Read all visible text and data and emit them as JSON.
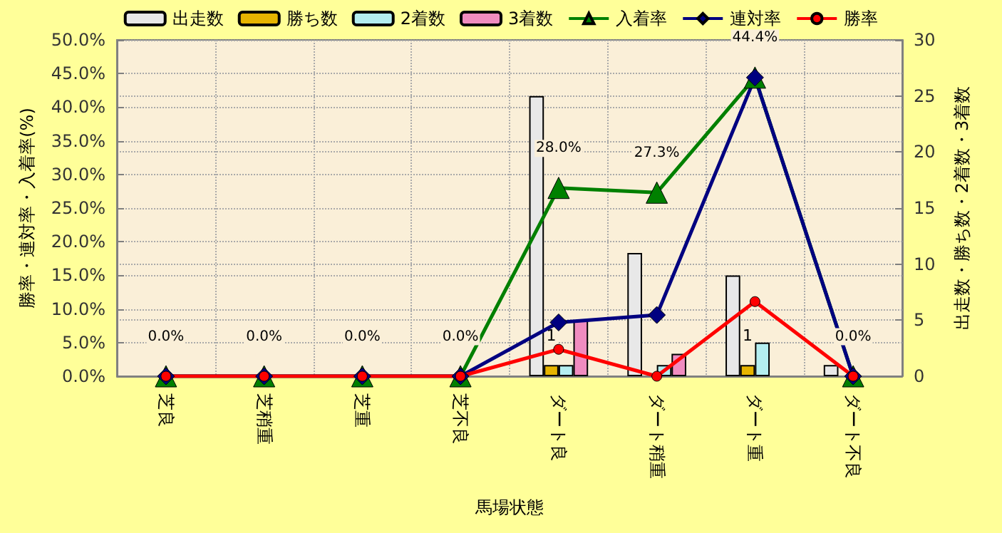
{
  "chart_data": {
    "type": "bar",
    "xlabel": "馬場状態",
    "ylabel": "勝率・連対率・入着率(%)",
    "y2label": "出走数・勝ち数・2着数・3着数",
    "categories": [
      "芝良",
      "芝稍重",
      "芝重",
      "芝不良",
      "ダート良",
      "ダート稍重",
      "ダート重",
      "ダート不良"
    ],
    "series": [
      {
        "name": "出走数",
        "axis": "y2",
        "color": "#e8e8e8",
        "values": [
          0,
          0,
          0,
          0,
          25,
          11,
          9,
          1
        ]
      },
      {
        "name": "勝ち数",
        "axis": "y2",
        "color": "#e6b400",
        "values": [
          0,
          0,
          0,
          0,
          1,
          0,
          1,
          0
        ],
        "value_labels": [
          null,
          null,
          null,
          null,
          "1",
          null,
          "1",
          null
        ]
      },
      {
        "name": "2着数",
        "axis": "y2",
        "color": "#b4eef0",
        "values": [
          0,
          0,
          0,
          0,
          1,
          1,
          3,
          0
        ]
      },
      {
        "name": "3着数",
        "axis": "y2",
        "color": "#f08cc0",
        "values": [
          0,
          0,
          0,
          0,
          5,
          2,
          0,
          0
        ]
      },
      {
        "name": "入着率",
        "type": "line",
        "marker": "triangle",
        "color": "#008000",
        "values": [
          0,
          0,
          0,
          0,
          28.0,
          27.3,
          44.4,
          0
        ],
        "value_labels": [
          "0.0%",
          "0.0%",
          "0.0%",
          "0.0%",
          "28.0%",
          "27.3%",
          "44.4%",
          "0.0%"
        ]
      },
      {
        "name": "連対率",
        "type": "line",
        "marker": "diamond",
        "color": "#000080",
        "values": [
          0,
          0,
          0,
          0,
          8.0,
          9.1,
          44.4,
          0
        ]
      },
      {
        "name": "勝率",
        "type": "line",
        "marker": "circle",
        "color": "#ff0000",
        "values": [
          0,
          0,
          0,
          0,
          4.0,
          0,
          11.1,
          0
        ]
      }
    ],
    "ylim": [
      0,
      50
    ],
    "yticks": [
      {
        "value": 0,
        "label": "0.0%"
      },
      {
        "value": 5,
        "label": "5.0%"
      },
      {
        "value": 10,
        "label": "10.0%"
      },
      {
        "value": 15,
        "label": "15.0%"
      },
      {
        "value": 20,
        "label": "20.0%"
      },
      {
        "value": 25,
        "label": "25.0%"
      },
      {
        "value": 30,
        "label": "30.0%"
      },
      {
        "value": 35,
        "label": "35.0%"
      },
      {
        "value": 40,
        "label": "40.0%"
      },
      {
        "value": 45,
        "label": "45.0%"
      },
      {
        "value": 50,
        "label": "50.0%"
      }
    ],
    "y2lim": [
      0,
      30
    ],
    "y2ticks": [
      0,
      5,
      10,
      15,
      20,
      25,
      30
    ],
    "grid": true,
    "legend": "top"
  }
}
